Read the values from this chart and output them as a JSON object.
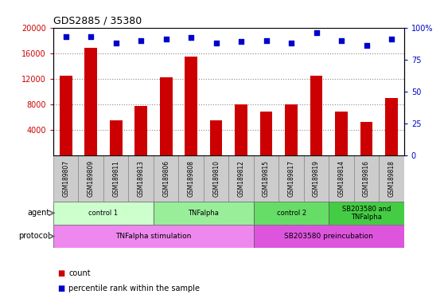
{
  "title": "GDS2885 / 35380",
  "samples": [
    "GSM189807",
    "GSM189809",
    "GSM189811",
    "GSM189813",
    "GSM189806",
    "GSM189808",
    "GSM189810",
    "GSM189812",
    "GSM189815",
    "GSM189817",
    "GSM189819",
    "GSM189814",
    "GSM189816",
    "GSM189818"
  ],
  "counts": [
    12500,
    16800,
    5500,
    7700,
    12200,
    15500,
    5500,
    7900,
    6800,
    8000,
    12500,
    6800,
    5200,
    9000
  ],
  "percentile_ranks": [
    93,
    93,
    88,
    90,
    91,
    92,
    88,
    89,
    90,
    88,
    96,
    90,
    86,
    91
  ],
  "ylim_left": [
    0,
    20000
  ],
  "ylim_right": [
    0,
    100
  ],
  "yticks_left": [
    4000,
    8000,
    12000,
    16000,
    20000
  ],
  "yticks_right": [
    0,
    25,
    50,
    75,
    100
  ],
  "bar_color": "#cc0000",
  "scatter_color": "#0000cc",
  "agent_groups": [
    {
      "label": "control 1",
      "start": 0,
      "end": 4,
      "color": "#ccffcc"
    },
    {
      "label": "TNFalpha",
      "start": 4,
      "end": 8,
      "color": "#99ee99"
    },
    {
      "label": "control 2",
      "start": 8,
      "end": 11,
      "color": "#66dd66"
    },
    {
      "label": "SB203580 and\nTNFalpha",
      "start": 11,
      "end": 14,
      "color": "#44cc44"
    }
  ],
  "protocol_groups": [
    {
      "label": "TNFalpha stimulation",
      "start": 0,
      "end": 8,
      "color": "#ee88ee"
    },
    {
      "label": "SB203580 preincubation",
      "start": 8,
      "end": 14,
      "color": "#dd55dd"
    }
  ],
  "agent_label": "agent",
  "protocol_label": "protocol",
  "legend_count_label": "count",
  "legend_pct_label": "percentile rank within the sample",
  "grid_color": "#888888",
  "xtick_bg_color": "#cccccc",
  "plot_bg": "#ffffff"
}
